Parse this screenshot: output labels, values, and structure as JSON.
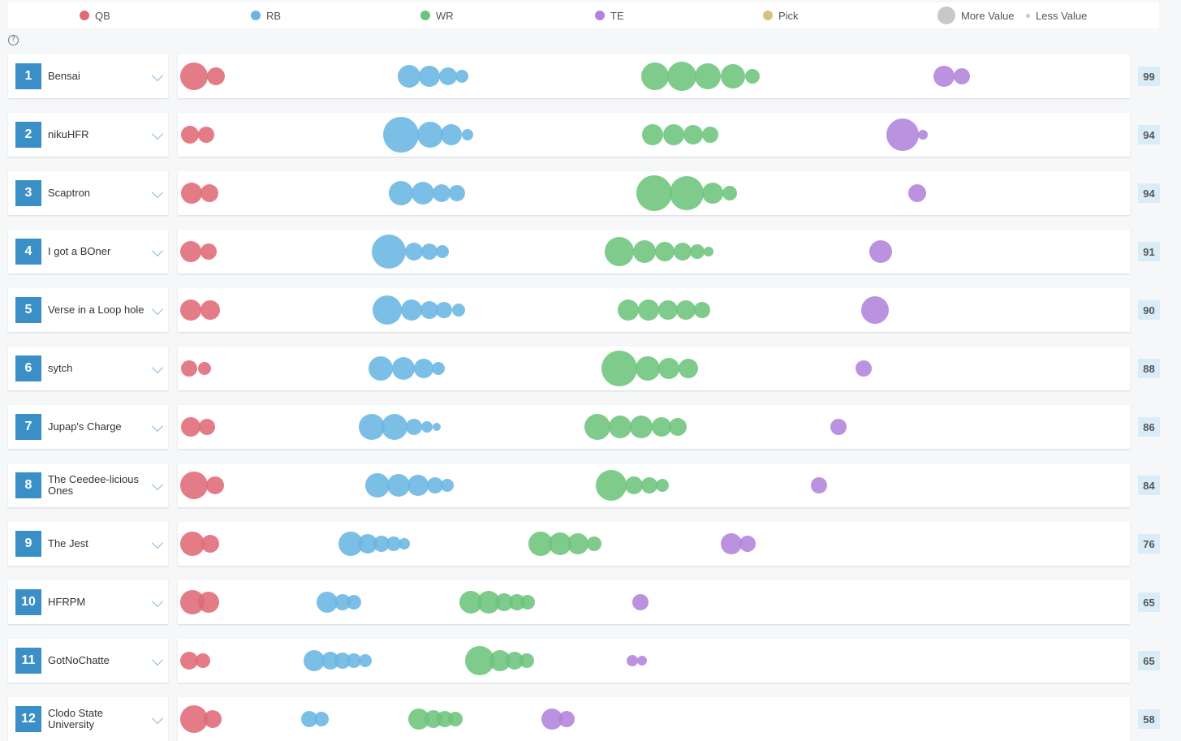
{
  "legend": [
    {
      "label": "QB",
      "color": "#e06a76"
    },
    {
      "label": "RB",
      "color": "#6ab6e2"
    },
    {
      "label": "WR",
      "color": "#6cc47c"
    },
    {
      "label": "TE",
      "color": "#b183dc"
    },
    {
      "label": "Pick",
      "color": "#d8c17a"
    },
    {
      "label": "More Value",
      "color": "#c8c8c8"
    },
    {
      "label": "Less Value",
      "color": "#c8c8c8"
    }
  ],
  "help_icon": "question-circle-icon",
  "colors": {
    "QB": "#e06a76",
    "RB": "#6ab6e2",
    "WR": "#6cc47c",
    "TE": "#b183dc",
    "rank_bg": "#3a8fc7",
    "score_bg": "#d9edf8"
  },
  "teams": [
    {
      "rank": "1",
      "name": "Bensai",
      "score": "99"
    },
    {
      "rank": "2",
      "name": "nikuHFR",
      "score": "94"
    },
    {
      "rank": "3",
      "name": "Scaptron",
      "score": "94"
    },
    {
      "rank": "4",
      "name": "I got a BOner",
      "score": "91"
    },
    {
      "rank": "5",
      "name": "Verse in a Loop hole",
      "score": "90"
    },
    {
      "rank": "6",
      "name": "sytch",
      "score": "88"
    },
    {
      "rank": "7",
      "name": "Jupap's Charge",
      "score": "86"
    },
    {
      "rank": "8",
      "name": "The Ceedee-licious Ones",
      "score": "84"
    },
    {
      "rank": "9",
      "name": "The Jest",
      "score": "76"
    },
    {
      "rank": "10",
      "name": "HFRPM",
      "score": "65"
    },
    {
      "rank": "11",
      "name": "GotNoChatte",
      "score": "65"
    },
    {
      "rank": "12",
      "name": "Clodo State University",
      "score": "58"
    }
  ]
}
